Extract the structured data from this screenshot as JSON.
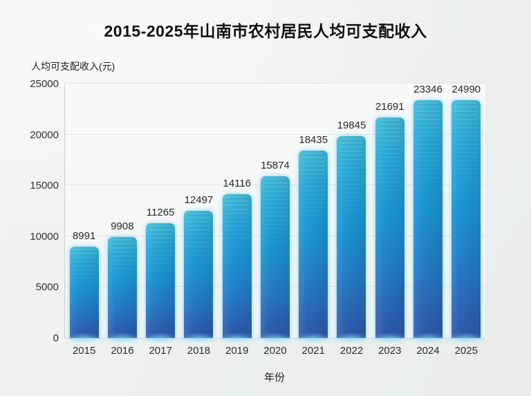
{
  "chart_data": {
    "type": "bar",
    "title": "2015-2025年山南市农村居民人均可支配收入",
    "xlabel": "年份",
    "ylabel": "人均可支配收入(元)",
    "categories": [
      "2015",
      "2016",
      "2017",
      "2018",
      "2019",
      "2020",
      "2021",
      "2022",
      "2023",
      "2024",
      "2025"
    ],
    "values": [
      8991,
      9908,
      11265,
      12497,
      14116,
      15874,
      18435,
      19845,
      21691,
      23346,
      24990
    ],
    "ylim": [
      0,
      25000
    ],
    "yticks": [
      0,
      5000,
      10000,
      15000,
      20000,
      25000
    ],
    "grid": true,
    "legend": "none",
    "colors": {
      "bar_top": "#40bbd9",
      "bar_mid": "#1b95d3",
      "bar_bottom": "#2f57a8",
      "bar_glow": "#82dcf8",
      "gridline": "#e2e5e5",
      "background": "#edf0ef",
      "text": "#262626"
    }
  }
}
